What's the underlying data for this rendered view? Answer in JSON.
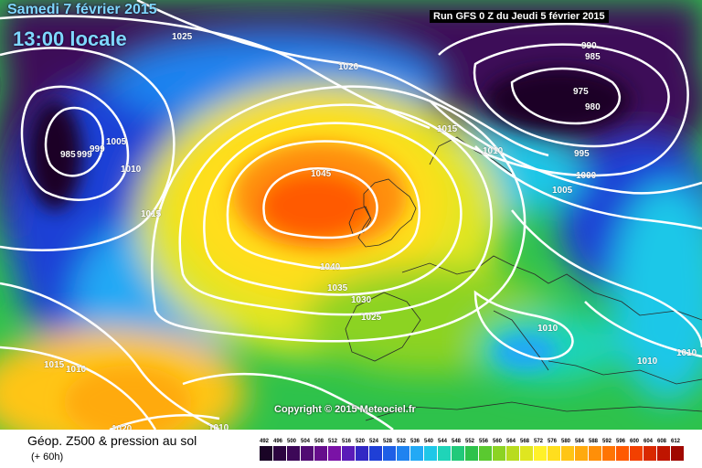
{
  "header": {
    "date_label": "Samedi 7 février 2015",
    "time_label": "13:00 locale",
    "run_info": "Run GFS 0 Z du Jeudi 5 février 2015"
  },
  "map": {
    "copyright": "Copyright © 2015 Meteociel.fr",
    "pressure_labels": [
      "1025",
      "1020",
      "990",
      "985",
      "975",
      "980",
      "1015",
      "995",
      "1010",
      "1000",
      "1005",
      "1045",
      "1040",
      "1035",
      "1030",
      "1025",
      "1010",
      "1010",
      "1015",
      "1010",
      "1015",
      "1010",
      "1020",
      "1010",
      "999",
      "1005",
      "985",
      "999",
      "1010"
    ],
    "colors": {
      "low_geopotential": "#3b0a5c",
      "mid_geopotential": "#22c040",
      "high_geopotential": "#ff6a00"
    }
  },
  "footer": {
    "field_name": "Géop. Z500 & pression au sol",
    "lead_time": "(+ 60h)",
    "legend_ticks": [
      "492",
      "496",
      "500",
      "504",
      "508",
      "512",
      "516",
      "520",
      "524",
      "528",
      "532",
      "536",
      "540",
      "544",
      "548",
      "552",
      "556",
      "560",
      "564",
      "568",
      "572",
      "576",
      "580",
      "584",
      "588",
      "592",
      "596",
      "600",
      "604",
      "608",
      "612"
    ],
    "legend_colors": [
      "#1a0426",
      "#2c0540",
      "#3d0858",
      "#510b73",
      "#660e8c",
      "#7a12a6",
      "#5a1bb8",
      "#3228c4",
      "#1f3fd6",
      "#1e5fe6",
      "#1f83f0",
      "#22a9f5",
      "#1fc7e8",
      "#1fd4b8",
      "#22c97a",
      "#2ec24b",
      "#5ac930",
      "#8cd324",
      "#b8dc1f",
      "#dfe620",
      "#fff12a",
      "#ffde1e",
      "#ffc515",
      "#ffaa0e",
      "#ff8f08",
      "#ff7404",
      "#ff5a02",
      "#f24000",
      "#d92800",
      "#bf1500",
      "#a00800"
    ]
  }
}
